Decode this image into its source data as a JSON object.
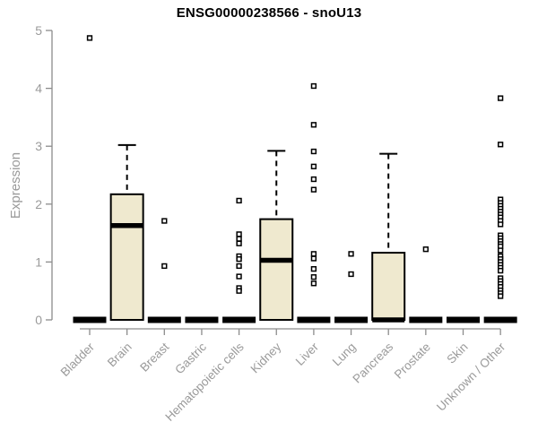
{
  "chart_data": {
    "type": "boxplot",
    "title": "ENSG00000238566 - snoU13",
    "xlabel": "",
    "ylabel": "Expression",
    "ylim": [
      0,
      5
    ],
    "yticks": [
      0,
      1,
      2,
      3,
      4,
      5
    ],
    "grid": false,
    "legend": null,
    "colors": {
      "box_fill": "#EFE9CF",
      "box_stroke": "#000000",
      "median": "#000000",
      "outlier": "#000000",
      "axis": "#8c8c8c",
      "tick_text": "#9a9a9a",
      "title_text": "#000000"
    },
    "boxes": [
      {
        "category": "Bladder",
        "q1": 0,
        "median": 0,
        "q3": 0,
        "whisker_low": 0,
        "whisker_high": 0,
        "outliers": [
          4.87
        ]
      },
      {
        "category": "Brain",
        "q1": 0,
        "median": 1.63,
        "q3": 2.17,
        "whisker_low": 0,
        "whisker_high": 3.02,
        "outliers": []
      },
      {
        "category": "Breast",
        "q1": 0,
        "median": 0,
        "q3": 0,
        "whisker_low": 0,
        "whisker_high": 0,
        "outliers": [
          1.71,
          0.93
        ]
      },
      {
        "category": "Gastric",
        "q1": 0,
        "median": 0,
        "q3": 0,
        "whisker_low": 0,
        "whisker_high": 0,
        "outliers": []
      },
      {
        "category": "Hematopoietic cells",
        "q1": 0,
        "median": 0,
        "q3": 0,
        "whisker_low": 0,
        "whisker_high": 0,
        "outliers": [
          2.06,
          1.48,
          1.4,
          1.32,
          1.1,
          1.05,
          0.93,
          0.75,
          0.55,
          0.5
        ]
      },
      {
        "category": "Kidney",
        "q1": 0,
        "median": 1.03,
        "q3": 1.74,
        "whisker_low": 0,
        "whisker_high": 2.92,
        "outliers": []
      },
      {
        "category": "Liver",
        "q1": 0,
        "median": 0,
        "q3": 0,
        "whisker_low": 0,
        "whisker_high": 0,
        "outliers": [
          4.04,
          3.37,
          2.91,
          2.65,
          2.43,
          2.25,
          1.14,
          1.06,
          0.88,
          0.74,
          0.63
        ]
      },
      {
        "category": "Lung",
        "q1": 0,
        "median": 0,
        "q3": 0,
        "whisker_low": 0,
        "whisker_high": 0,
        "outliers": [
          1.14,
          0.79
        ]
      },
      {
        "category": "Pancreas",
        "q1": 0,
        "median": 0,
        "q3": 1.16,
        "whisker_low": 0,
        "whisker_high": 2.87,
        "outliers": []
      },
      {
        "category": "Prostate",
        "q1": 0,
        "median": 0,
        "q3": 0,
        "whisker_low": 0,
        "whisker_high": 0,
        "outliers": [
          1.22
        ]
      },
      {
        "category": "Skin",
        "q1": 0,
        "median": 0,
        "q3": 0,
        "whisker_low": 0,
        "whisker_high": 0,
        "outliers": []
      },
      {
        "category": "Unknown / Other",
        "q1": 0,
        "median": 0,
        "q3": 0,
        "whisker_low": 0,
        "whisker_high": 0,
        "outliers": [
          3.83,
          3.03,
          2.08,
          2.02,
          1.97,
          1.92,
          1.87,
          1.82,
          1.77,
          1.71,
          1.65,
          1.46,
          1.41,
          1.36,
          1.31,
          1.27,
          1.2,
          1.1,
          1.05,
          1.0,
          0.95,
          0.9,
          0.85,
          0.72,
          0.67,
          0.62,
          0.57,
          0.51,
          0.46,
          0.41
        ]
      }
    ]
  }
}
